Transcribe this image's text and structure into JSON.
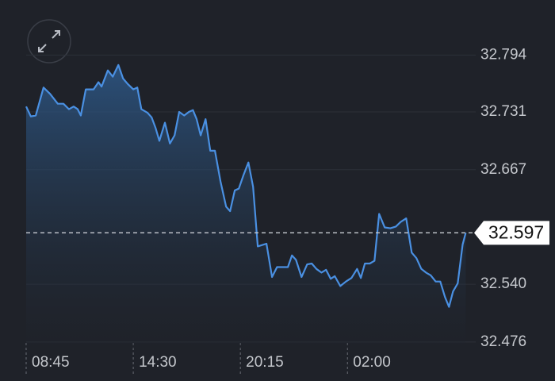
{
  "chart_data": {
    "type": "line",
    "color": "#4a90e2",
    "area": true,
    "grid": true,
    "x": [
      0,
      15,
      31,
      56,
      77,
      102,
      120,
      138,
      153,
      166,
      176,
      192,
      217,
      233,
      243,
      263,
      279,
      297,
      312,
      327,
      345,
      358,
      371,
      391,
      404,
      417,
      429,
      447,
      463,
      478,
      493,
      509,
      524,
      537,
      549,
      562,
      578,
      593,
      608,
      626,
      644,
      657,
      672,
      685,
      700,
      716,
      731,
      746,
      774,
      792,
      808,
      828,
      843,
      856,
      869,
      887,
      905,
      920,
      935,
      951,
      966,
      981,
      994,
      1012,
      1030,
      1048,
      1066,
      1078,
      1091,
      1107,
      1122,
      1137,
      1155,
      1173,
      1191,
      1206,
      1224,
      1242,
      1257,
      1273,
      1288,
      1303,
      1319,
      1334,
      1349,
      1362,
      1375,
      1390,
      1406,
      1416
    ],
    "values": [
      32.737,
      32.726,
      32.727,
      32.758,
      32.751,
      32.74,
      32.74,
      32.734,
      32.737,
      32.734,
      32.727,
      32.756,
      32.756,
      32.764,
      32.759,
      32.777,
      32.77,
      32.783,
      32.768,
      32.762,
      32.756,
      32.758,
      32.734,
      32.73,
      32.725,
      32.713,
      32.699,
      32.719,
      32.696,
      32.705,
      32.731,
      32.727,
      32.731,
      32.733,
      32.723,
      32.705,
      32.723,
      32.688,
      32.688,
      32.654,
      32.626,
      32.621,
      32.644,
      32.646,
      32.661,
      32.675,
      32.648,
      32.582,
      32.585,
      32.548,
      32.559,
      32.559,
      32.559,
      32.572,
      32.567,
      32.548,
      32.562,
      32.563,
      32.557,
      32.553,
      32.556,
      32.546,
      32.549,
      32.538,
      32.543,
      32.547,
      32.557,
      32.547,
      32.563,
      32.563,
      32.566,
      32.618,
      32.603,
      32.602,
      32.604,
      32.609,
      32.613,
      32.575,
      32.569,
      32.557,
      32.553,
      32.55,
      32.543,
      32.543,
      32.526,
      32.515,
      32.532,
      32.541,
      32.584,
      32.597
    ],
    "xlim": [
      0,
      1420
    ],
    "xticks": [
      {
        "value": 0,
        "label": "08:45"
      },
      {
        "value": 345,
        "label": "14:30"
      },
      {
        "value": 690,
        "label": "20:15"
      },
      {
        "value": 1035,
        "label": "02:00"
      }
    ],
    "ylim": [
      32.468,
      32.855
    ],
    "yticks": [
      32.476,
      {
        "value": 32.54,
        "label": "32.540"
      },
      32.667,
      32.731,
      32.794
    ],
    "current_price": 32.597
  }
}
